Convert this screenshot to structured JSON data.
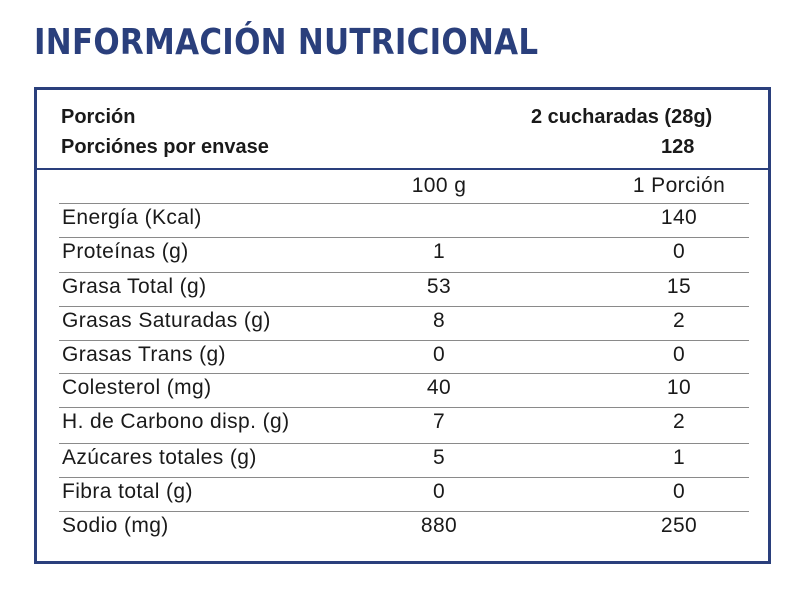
{
  "title": "INFORMACIÓN NUTRICIONAL",
  "serving": {
    "portion_label": "Porción",
    "portion_value": "2 cucharadas (28g)",
    "servings_label": "Porciónes por envase",
    "servings_value": "128"
  },
  "columns": [
    "100 g",
    "1 Porción"
  ],
  "rows": [
    {
      "label": "Energía (Kcal)",
      "per100": "",
      "portion": "140"
    },
    {
      "label": "Proteínas (g)",
      "per100": "1",
      "portion": "0"
    },
    {
      "label": "Grasa Total (g)",
      "per100": "53",
      "portion": "15"
    },
    {
      "label": "Grasas Saturadas (g)",
      "per100": "8",
      "portion": "2"
    },
    {
      "label": "Grasas Trans (g)",
      "per100": "0",
      "portion": "0"
    },
    {
      "label": "Colesterol (mg)",
      "per100": "40",
      "portion": "10"
    },
    {
      "label": "H. de Carbono disp. (g)",
      "per100": "7",
      "portion": "2"
    },
    {
      "label": "Azúcares totales (g)",
      "per100": "5",
      "portion": "1"
    },
    {
      "label": "Fibra total (g)",
      "per100": "0",
      "portion": "0"
    },
    {
      "label": "Sodio (mg)",
      "per100": "880",
      "portion": "250"
    }
  ],
  "colors": {
    "accent": "#2a3f7c",
    "rule": "#8a8a8a",
    "text": "#1a1a1a"
  }
}
